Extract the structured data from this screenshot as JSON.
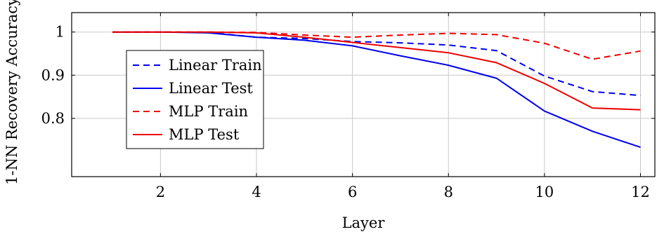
{
  "chart_data": {
    "type": "line",
    "xlabel": "Layer",
    "ylabel": "1-NN Recovery Accuracy",
    "xlim": [
      0.15,
      12.3
    ],
    "ylim": [
      0.665,
      1.045
    ],
    "xticks": [
      2,
      4,
      6,
      8,
      10,
      12
    ],
    "yticks": [
      0.8,
      0.9,
      1
    ],
    "xtick_labels": [
      "2",
      "4",
      "6",
      "8",
      "10",
      "12"
    ],
    "ytick_labels": [
      "0.8",
      "0.9",
      "1"
    ],
    "grid": true,
    "legend_position": "left",
    "series": [
      {
        "name": "Linear Train",
        "color": "#0000ee",
        "dash": "dashed",
        "x": [
          1,
          2,
          3,
          4,
          5,
          6,
          7,
          8,
          9,
          10,
          11,
          12
        ],
        "y": [
          1.0,
          1.0,
          0.999,
          0.988,
          0.985,
          0.978,
          0.975,
          0.97,
          0.957,
          0.898,
          0.862,
          0.853
        ]
      },
      {
        "name": "Linear Test",
        "color": "#0000ee",
        "dash": "solid",
        "x": [
          1,
          2,
          3,
          4,
          5,
          6,
          7,
          8,
          9,
          10,
          11,
          12
        ],
        "y": [
          1.0,
          1.0,
          0.998,
          0.988,
          0.981,
          0.968,
          0.945,
          0.923,
          0.893,
          0.817,
          0.77,
          0.733
        ]
      },
      {
        "name": "MLP Train",
        "color": "#ee0000",
        "dash": "dashed",
        "x": [
          1,
          2,
          3,
          4,
          5,
          6,
          7,
          8,
          9,
          10,
          11,
          12
        ],
        "y": [
          1.0,
          1.0,
          1.0,
          0.999,
          0.993,
          0.988,
          0.993,
          0.997,
          0.994,
          0.974,
          0.937,
          0.956
        ]
      },
      {
        "name": "MLP Test",
        "color": "#ee0000",
        "dash": "solid",
        "x": [
          1,
          2,
          3,
          4,
          5,
          6,
          7,
          8,
          9,
          10,
          11,
          12
        ],
        "y": [
          1.0,
          1.0,
          1.0,
          0.998,
          0.988,
          0.976,
          0.964,
          0.952,
          0.929,
          0.881,
          0.824,
          0.82
        ]
      }
    ]
  }
}
